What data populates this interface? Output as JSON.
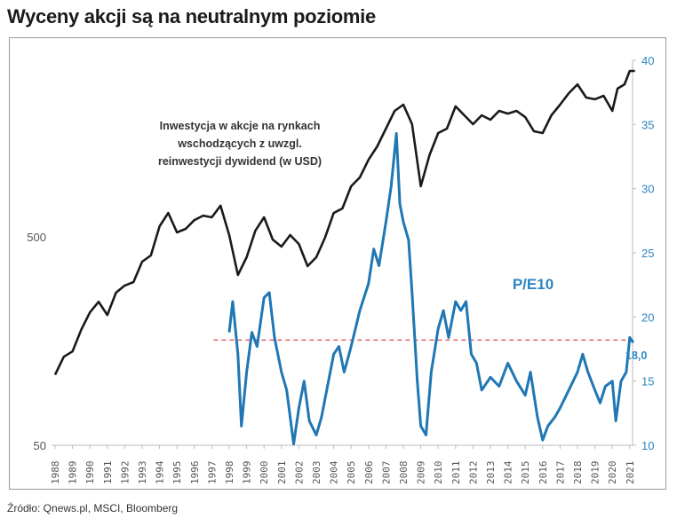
{
  "title": "Wyceny akcji są na neutralnym poziomie",
  "source": "Źródło: Qnews.pl, MSCI, Bloomberg",
  "chart_data": {
    "type": "line",
    "title": "Wyceny akcji są na neutralnym poziomie",
    "x_ticks": [
      "1988",
      "1989",
      "1990",
      "1991",
      "1992",
      "1993",
      "1994",
      "1995",
      "1996",
      "1997",
      "1998",
      "1999",
      "2000",
      "2001",
      "2002",
      "2003",
      "2004",
      "2005",
      "2006",
      "2007",
      "2008",
      "2009",
      "2010",
      "2011",
      "2012",
      "2013",
      "2014",
      "2015",
      "2016",
      "2017",
      "2018",
      "2019",
      "2020",
      "2021"
    ],
    "xlim": [
      1988,
      2021
    ],
    "left_axis": {
      "scale": "log",
      "ticks": [
        "50",
        "500"
      ],
      "tick_values": [
        50,
        500
      ]
    },
    "right_axis": {
      "scale": "linear",
      "ylim": [
        10,
        40
      ],
      "ticks": [
        "10",
        "15",
        "20",
        "25",
        "30",
        "35",
        "40"
      ],
      "tick_values": [
        10,
        15,
        20,
        25,
        30,
        35,
        40
      ]
    },
    "annotations": {
      "index_label_lines": [
        "Inwestycja w akcje na rynkach",
        "wschodzących z uwzgl.",
        "reinwestycji dywidend (w USD)"
      ],
      "pe_label": "P/E10",
      "last_value_label": "18,0"
    },
    "reference_line": {
      "value": 18.2,
      "from": 1997.1,
      "to": 2021.2,
      "axis": "right",
      "color": "#e06070"
    },
    "colors": {
      "index": "#1a1a1a",
      "pe": "#1f77b4",
      "axis_text": "#555555",
      "right_axis_text": "#2e86c1"
    },
    "series": [
      {
        "name": "Inwestycja w akcje na rynkach wschodzących (USD)",
        "axis": "left",
        "x": [
          1988,
          1988.5,
          1989,
          1989.5,
          1990,
          1990.5,
          1991,
          1991.5,
          1992,
          1992.5,
          1993,
          1993.5,
          1994,
          1994.5,
          1995,
          1995.5,
          1996,
          1996.5,
          1997,
          1997.5,
          1998,
          1998.5,
          1999,
          1999.5,
          2000,
          2000.5,
          2001,
          2001.5,
          2002,
          2002.5,
          2003,
          2003.5,
          2004,
          2004.5,
          2005,
          2005.5,
          2006,
          2006.5,
          2007,
          2007.5,
          2008,
          2008.5,
          2009,
          2009.5,
          2010,
          2010.5,
          2011,
          2011.5,
          2012,
          2012.5,
          2013,
          2013.5,
          2014,
          2014.5,
          2015,
          2015.5,
          2016,
          2016.5,
          2017,
          2017.5,
          2018,
          2018.5,
          2019,
          2019.5,
          2020,
          2020.3,
          2020.7,
          2021,
          2021.3
        ],
        "values": [
          109,
          133,
          141,
          179,
          217,
          244,
          211,
          270,
          292,
          303,
          380,
          407,
          562,
          651,
          525,
          546,
          602,
          632,
          620,
          705,
          510,
          328,
          399,
          535,
          620,
          485,
          449,
          510,
          462,
          362,
          399,
          495,
          651,
          684,
          874,
          964,
          1172,
          1358,
          1652,
          2010,
          2152,
          1735,
          874,
          1231,
          1573,
          1652,
          2113,
          1914,
          1735,
          1914,
          1822,
          2010,
          1950,
          2010,
          1875,
          1604,
          1573,
          1914,
          2152,
          2444,
          2695,
          2328,
          2285,
          2375,
          2010,
          2570,
          2695,
          3125,
          3125
        ]
      },
      {
        "name": "P/E10",
        "axis": "right",
        "x": [
          1998,
          1998.2,
          1998.5,
          1998.7,
          1999,
          1999.3,
          1999.6,
          2000,
          2000.3,
          2000.6,
          2001,
          2001.3,
          2001.7,
          2002,
          2002.3,
          2002.6,
          2003,
          2003.3,
          2003.7,
          2004,
          2004.3,
          2004.6,
          2005,
          2005.5,
          2006,
          2006.3,
          2006.6,
          2007,
          2007.3,
          2007.6,
          2007.8,
          2008,
          2008.3,
          2008.5,
          2008.8,
          2009,
          2009.3,
          2009.6,
          2010,
          2010.3,
          2010.6,
          2011,
          2011.3,
          2011.6,
          2011.9,
          2012.2,
          2012.5,
          2013,
          2013.5,
          2014,
          2014.5,
          2015,
          2015.3,
          2015.7,
          2016,
          2016.3,
          2016.7,
          2017,
          2017.5,
          2018,
          2018.3,
          2018.6,
          2019,
          2019.3,
          2019.6,
          2020,
          2020.2,
          2020.5,
          2020.8,
          2021,
          2021.2
        ],
        "values": [
          18.8,
          21.2,
          17.1,
          11.5,
          15.7,
          18.8,
          17.7,
          21.5,
          21.9,
          18.4,
          15.7,
          14.3,
          10.1,
          12.9,
          15.0,
          11.9,
          10.8,
          12.2,
          15.0,
          17.1,
          17.7,
          15.7,
          17.7,
          20.5,
          22.6,
          25.3,
          24.0,
          27.4,
          30.2,
          34.3,
          28.8,
          27.4,
          26.0,
          21.9,
          15.0,
          11.5,
          10.8,
          15.7,
          19.1,
          20.5,
          18.4,
          21.2,
          20.5,
          21.2,
          17.1,
          16.4,
          14.3,
          15.3,
          14.6,
          16.4,
          15.0,
          13.9,
          15.7,
          12.2,
          10.4,
          11.5,
          12.2,
          12.9,
          14.3,
          15.7,
          17.1,
          15.7,
          14.3,
          13.3,
          14.6,
          15.0,
          11.9,
          15.0,
          15.7,
          18.4,
          18.0
        ]
      }
    ]
  }
}
